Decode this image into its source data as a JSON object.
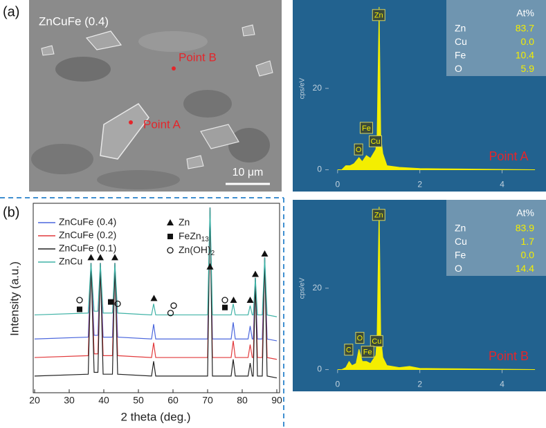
{
  "panel_labels": [
    "(a)",
    "(b)"
  ],
  "sem": {
    "title": "ZnCuFe (0.4)",
    "points": [
      "Point A",
      "Point B"
    ],
    "scale_bar": "10 μm"
  },
  "chart_data": [
    {
      "type": "line",
      "xlabel": "2 theta (deg.)",
      "ylabel": "Intensity (a.u.)",
      "xlim": [
        20,
        90
      ],
      "xticks": [
        20,
        30,
        40,
        50,
        60,
        70,
        80,
        90
      ],
      "ylim": [
        0,
        100
      ],
      "x": [
        20,
        35.5,
        36.3,
        37.2,
        38.3,
        39.0,
        39.8,
        42.5,
        43.2,
        44.0,
        53.8,
        54.4,
        55.0,
        70.0,
        70.7,
        71.4,
        76.8,
        77.4,
        78.0,
        81.7,
        82.3,
        82.9,
        83.2,
        83.8,
        84.4,
        85.8,
        86.5,
        87.2,
        90
      ],
      "series": [
        {
          "name": "ZnCuFe (0.4)",
          "color": "#4a66dd",
          "values": [
            29,
            30,
            70,
            31,
            31,
            70,
            30,
            30,
            70,
            30,
            29,
            37,
            29,
            29,
            100,
            29,
            29,
            38,
            29,
            29,
            36,
            29,
            29,
            62,
            29,
            29,
            73,
            29,
            28
          ]
        },
        {
          "name": "ZnCuFe (0.2)",
          "color": "#e2393b",
          "values": [
            19,
            20,
            70,
            21,
            21,
            70,
            20,
            20,
            70,
            20,
            19,
            27,
            19,
            19,
            100,
            19,
            19,
            28,
            19,
            19,
            26,
            19,
            19,
            62,
            19,
            19,
            73,
            19,
            18
          ]
        },
        {
          "name": "ZnCuFe (0.1)",
          "color": "#222222",
          "values": [
            9,
            10,
            70,
            11,
            11,
            70,
            10,
            10,
            70,
            10,
            9,
            17,
            9,
            9,
            100,
            9,
            9,
            18,
            9,
            9,
            16,
            9,
            9,
            62,
            9,
            9,
            73,
            9,
            8
          ]
        },
        {
          "name": "ZnCu",
          "color": "#3fb2a6",
          "values": [
            42,
            43,
            70,
            44,
            44,
            70,
            43,
            43,
            70,
            43,
            42,
            48,
            42,
            42,
            100,
            42,
            42,
            48,
            42,
            42,
            47,
            42,
            42,
            62,
            42,
            42,
            73,
            42,
            41
          ]
        }
      ],
      "phase_legend": [
        {
          "symbol": "triangle",
          "label": "Zn"
        },
        {
          "symbol": "square",
          "label": "FeZn",
          "subscript": "13"
        },
        {
          "symbol": "circle",
          "label": "Zn(OH)",
          "subscript": "2"
        }
      ],
      "phase_markers": [
        {
          "symbol": "triangle",
          "x": 36.3,
          "y": 73
        },
        {
          "symbol": "triangle",
          "x": 39.0,
          "y": 73
        },
        {
          "symbol": "triangle",
          "x": 43.2,
          "y": 73
        },
        {
          "symbol": "triangle",
          "x": 54.5,
          "y": 51
        },
        {
          "symbol": "triangle",
          "x": 70.7,
          "y": 68
        },
        {
          "symbol": "triangle",
          "x": 77.5,
          "y": 50
        },
        {
          "symbol": "triangle",
          "x": 82.3,
          "y": 50
        },
        {
          "symbol": "triangle",
          "x": 83.8,
          "y": 64
        },
        {
          "symbol": "triangle",
          "x": 86.5,
          "y": 75
        },
        {
          "symbol": "square",
          "x": 33,
          "y": 45
        },
        {
          "symbol": "square",
          "x": 42,
          "y": 49
        },
        {
          "symbol": "square",
          "x": 75,
          "y": 46
        },
        {
          "symbol": "circle",
          "x": 33,
          "y": 50
        },
        {
          "symbol": "circle",
          "x": 44,
          "y": 48
        },
        {
          "symbol": "circle",
          "x": 59.3,
          "y": 43
        },
        {
          "symbol": "circle",
          "x": 60.2,
          "y": 47
        },
        {
          "symbol": "circle",
          "x": 75,
          "y": 50
        }
      ]
    },
    {
      "type": "area",
      "ylabel": "cps/eV",
      "xlim": [
        -0.3,
        5
      ],
      "xticks": [
        0,
        2,
        4
      ],
      "ylim": [
        -5,
        40
      ],
      "yticks": [
        0,
        20
      ],
      "color": "#f4ee00",
      "x": [
        0,
        0.1,
        0.2,
        0.3,
        0.4,
        0.52,
        0.6,
        0.7,
        0.8,
        0.93,
        0.96,
        1.01,
        1.05,
        1.1,
        1.2,
        1.5,
        2,
        3,
        4,
        4.8
      ],
      "values": [
        0,
        0,
        1,
        1,
        1.5,
        3,
        2,
        3.5,
        2.8,
        5,
        8,
        40,
        8,
        4,
        1,
        0.6,
        0.3,
        0.2,
        0.1,
        0
      ],
      "peak_labels": [
        {
          "text": "Zn",
          "x": 1.0,
          "y": 38
        },
        {
          "text": "Fe",
          "x": 0.7,
          "y": 10.3
        },
        {
          "text": "O",
          "x": 0.51,
          "y": 5
        },
        {
          "text": "Cu",
          "x": 0.92,
          "y": 7
        }
      ],
      "table": {
        "header": "At%",
        "rows": [
          [
            "Zn",
            "83.7"
          ],
          [
            "Cu",
            "0.0"
          ],
          [
            "Fe",
            "10.4"
          ],
          [
            "O",
            "5.9"
          ]
        ]
      },
      "point_label": "Point A"
    },
    {
      "type": "area",
      "ylabel": "cps/eV",
      "xlim": [
        -0.3,
        5
      ],
      "xticks": [
        0,
        2,
        4
      ],
      "ylim": [
        -5,
        40
      ],
      "yticks": [
        0,
        20
      ],
      "color": "#f4ee00",
      "x": [
        0,
        0.1,
        0.2,
        0.28,
        0.35,
        0.45,
        0.52,
        0.6,
        0.7,
        0.8,
        0.93,
        0.96,
        1.01,
        1.05,
        1.1,
        1.2,
        1.5,
        1.75,
        2,
        3,
        4,
        4.8
      ],
      "values": [
        0,
        0,
        0.5,
        2,
        1,
        1.5,
        5,
        2,
        2,
        1.5,
        3.5,
        8,
        40,
        8,
        3,
        1,
        0.5,
        0.8,
        0.3,
        0.2,
        0.1,
        0
      ],
      "peak_labels": [
        {
          "text": "Zn",
          "x": 1.0,
          "y": 38
        },
        {
          "text": "O",
          "x": 0.54,
          "y": 7.8
        },
        {
          "text": "Cu",
          "x": 0.95,
          "y": 7
        },
        {
          "text": "Fe",
          "x": 0.73,
          "y": 4.4
        },
        {
          "text": "C",
          "x": 0.27,
          "y": 4.9
        }
      ],
      "table": {
        "header": "At%",
        "rows": [
          [
            "Zn",
            "83.9"
          ],
          [
            "Cu",
            "1.7"
          ],
          [
            "Fe",
            "0.0"
          ],
          [
            "O",
            "14.4"
          ]
        ]
      },
      "point_label": "Point B"
    }
  ]
}
